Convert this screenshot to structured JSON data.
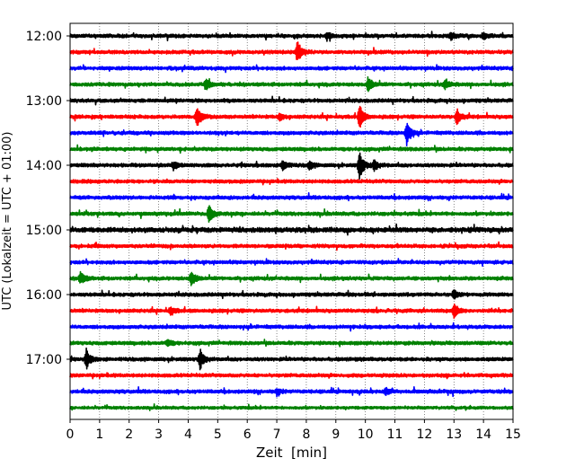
{
  "chart_data": {
    "type": "line",
    "title": "",
    "xlabel": "Zeit  [min]",
    "ylabel": "UTC (Lokalzeit = UTC + 01:00)",
    "xlim": [
      0,
      15
    ],
    "x_ticks": [
      "0",
      "1",
      "2",
      "3",
      "4",
      "5",
      "6",
      "7",
      "8",
      "9",
      "10",
      "11",
      "12",
      "13",
      "14",
      "15"
    ],
    "y_ticks": [
      "12:00",
      "13:00",
      "14:00",
      "15:00",
      "16:00",
      "17:00"
    ],
    "row_minutes": 15,
    "row_colors": [
      "#000000",
      "#ff0000",
      "#0000ff",
      "#008000"
    ],
    "grid": "vertical dotted",
    "series": [
      {
        "start": "12:00",
        "amplitude": 0.15,
        "events": [
          {
            "t": 8.7,
            "amp": 0.35
          },
          {
            "t": 12.9,
            "amp": 0.45
          },
          {
            "t": 14.0,
            "amp": 0.35
          }
        ]
      },
      {
        "start": "12:15",
        "amplitude": 0.15,
        "events": [
          {
            "t": 7.7,
            "amp": 1.2
          }
        ]
      },
      {
        "start": "12:30",
        "amplitude": 0.15,
        "events": []
      },
      {
        "start": "12:45",
        "amplitude": 0.15,
        "events": [
          {
            "t": 4.6,
            "amp": 0.6
          },
          {
            "t": 10.1,
            "amp": 0.85
          },
          {
            "t": 12.7,
            "amp": 0.5
          }
        ]
      },
      {
        "start": "13:00",
        "amplitude": 0.15,
        "events": []
      },
      {
        "start": "13:15",
        "amplitude": 0.15,
        "events": [
          {
            "t": 4.3,
            "amp": 1.3
          },
          {
            "t": 7.1,
            "amp": 0.35
          },
          {
            "t": 9.8,
            "amp": 1.3
          },
          {
            "t": 13.1,
            "amp": 0.8
          }
        ]
      },
      {
        "start": "13:30",
        "amplitude": 0.15,
        "events": [
          {
            "t": 11.4,
            "amp": 1.3
          }
        ]
      },
      {
        "start": "13:45",
        "amplitude": 0.15,
        "events": []
      },
      {
        "start": "14:00",
        "amplitude": 0.15,
        "events": [
          {
            "t": 3.5,
            "amp": 0.4
          },
          {
            "t": 7.2,
            "amp": 0.55
          },
          {
            "t": 8.1,
            "amp": 0.45
          },
          {
            "t": 9.8,
            "amp": 1.6
          },
          {
            "t": 10.3,
            "amp": 0.6
          }
        ]
      },
      {
        "start": "14:15",
        "amplitude": 0.15,
        "events": []
      },
      {
        "start": "14:30",
        "amplitude": 0.15,
        "events": []
      },
      {
        "start": "14:45",
        "amplitude": 0.15,
        "events": [
          {
            "t": 4.7,
            "amp": 1.0
          }
        ]
      },
      {
        "start": "15:00",
        "amplitude": 0.2,
        "events": []
      },
      {
        "start": "15:15",
        "amplitude": 0.15,
        "events": []
      },
      {
        "start": "15:30",
        "amplitude": 0.15,
        "events": []
      },
      {
        "start": "15:45",
        "amplitude": 0.15,
        "events": [
          {
            "t": 0.35,
            "amp": 0.7
          },
          {
            "t": 4.1,
            "amp": 0.9
          }
        ]
      },
      {
        "start": "16:00",
        "amplitude": 0.15,
        "events": [
          {
            "t": 13.0,
            "amp": 0.5
          }
        ]
      },
      {
        "start": "16:15",
        "amplitude": 0.15,
        "events": [
          {
            "t": 3.4,
            "amp": 0.45
          },
          {
            "t": 13.0,
            "amp": 0.75
          }
        ]
      },
      {
        "start": "16:30",
        "amplitude": 0.15,
        "events": []
      },
      {
        "start": "16:45",
        "amplitude": 0.15,
        "events": [
          {
            "t": 3.3,
            "amp": 0.4
          }
        ]
      },
      {
        "start": "17:00",
        "amplitude": 0.15,
        "events": [
          {
            "t": 0.55,
            "amp": 1.0
          },
          {
            "t": 4.4,
            "amp": 1.05
          }
        ]
      },
      {
        "start": "17:15",
        "amplitude": 0.15,
        "events": []
      },
      {
        "start": "17:30",
        "amplitude": 0.15,
        "events": [
          {
            "t": 7.0,
            "amp": 0.35
          },
          {
            "t": 10.7,
            "amp": 0.35
          }
        ]
      },
      {
        "start": "17:45",
        "amplitude": 0.12,
        "events": []
      }
    ]
  }
}
